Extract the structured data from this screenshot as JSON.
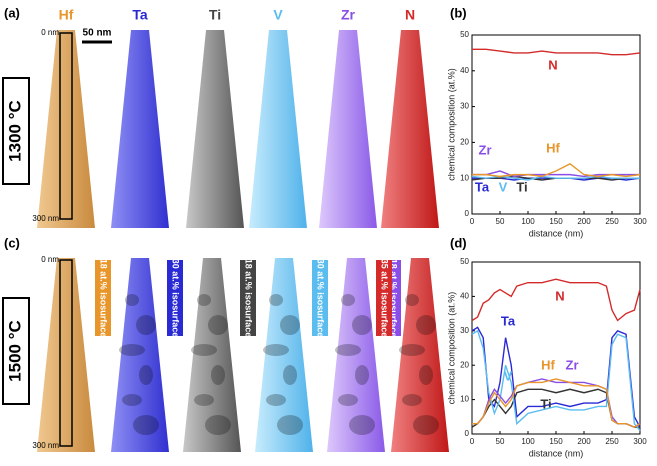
{
  "figure": {
    "panels": [
      "(a)",
      "(b)",
      "(c)",
      "(d)"
    ],
    "temperatures": [
      "1300 °C",
      "1500 °C"
    ],
    "elements": [
      "Hf",
      "Ta",
      "Ti",
      "V",
      "Zr",
      "N"
    ],
    "depth_top": [
      "0 nm",
      "0 nm"
    ],
    "depth_bottom": [
      "300 nm",
      "300 nm"
    ],
    "scale_bar": "50 nm",
    "isosurfaces": [
      "18 at.% isosurface",
      "30 at.% isosurface",
      "18 at.% isosurface",
      "30 at.% isosurface",
      "18 at.% isosurface",
      "35 at.% isosurface"
    ]
  },
  "chart_data": [
    {
      "type": "line",
      "x_label": "distance (nm)",
      "y_label": "chemical composition (at.%)",
      "x": [
        0,
        25,
        50,
        75,
        100,
        125,
        150,
        175,
        200,
        225,
        250,
        275,
        300
      ],
      "xlim": [
        0,
        300
      ],
      "ylim": [
        0,
        50
      ],
      "xticks": [
        0,
        50,
        100,
        150,
        200,
        250,
        300
      ],
      "yticks": [
        0,
        10,
        20,
        30,
        40,
        50
      ],
      "series": [
        {
          "name": "N",
          "color": "#d42a2a",
          "values": [
            46,
            46,
            45.5,
            45,
            45,
            45.5,
            45,
            45,
            45,
            45,
            44.5,
            44.5,
            45
          ]
        },
        {
          "name": "Ta",
          "color": "#2a2ad4",
          "values": [
            10,
            10,
            10,
            9.5,
            10,
            10,
            10,
            10,
            9.5,
            10,
            10,
            9.5,
            10
          ]
        },
        {
          "name": "Ti",
          "color": "#333333",
          "values": [
            9.5,
            10,
            10,
            10.5,
            10,
            9.5,
            10,
            10,
            10,
            10,
            9.5,
            10,
            10
          ]
        },
        {
          "name": "V",
          "color": "#5bbcf0",
          "values": [
            10.5,
            10,
            10.5,
            10,
            9.5,
            10.5,
            10,
            10,
            10,
            10.5,
            10,
            10,
            10
          ]
        },
        {
          "name": "Zr",
          "color": "#8a4ee6",
          "values": [
            11,
            11,
            12,
            10.5,
            11,
            11,
            11,
            11,
            10.5,
            11,
            11,
            11,
            11
          ]
        },
        {
          "name": "Hf",
          "color": "#e8962a",
          "values": [
            11,
            11,
            10.5,
            11,
            11,
            10.5,
            12,
            14,
            11,
            10.5,
            11,
            10.5,
            11
          ]
        }
      ]
    },
    {
      "type": "line",
      "x_label": "distance (nm)",
      "y_label": "chemical composition (at.%)",
      "x": [
        0,
        10,
        20,
        30,
        40,
        50,
        60,
        70,
        80,
        100,
        125,
        150,
        175,
        200,
        225,
        240,
        250,
        260,
        275,
        290,
        300
      ],
      "xlim": [
        0,
        300
      ],
      "ylim": [
        0,
        50
      ],
      "xticks": [
        0,
        50,
        100,
        150,
        200,
        250,
        300
      ],
      "yticks": [
        0,
        10,
        20,
        30,
        40,
        50
      ],
      "series": [
        {
          "name": "N",
          "color": "#d42a2a",
          "values": [
            33,
            34,
            38,
            39,
            41,
            42,
            41,
            40,
            43,
            44,
            44,
            45,
            44,
            44,
            44,
            43,
            36,
            33,
            35,
            36,
            42
          ]
        },
        {
          "name": "Ta",
          "color": "#2a2ad4",
          "values": [
            30,
            31,
            28,
            10,
            8,
            15,
            28,
            20,
            5,
            8,
            8,
            9,
            8,
            9,
            9,
            10,
            28,
            30,
            29,
            5,
            2
          ]
        },
        {
          "name": "Ti",
          "color": "#333333",
          "values": [
            2,
            3,
            5,
            8,
            10,
            8,
            6,
            8,
            12,
            13,
            13,
            12,
            13,
            12,
            13,
            12,
            4,
            3,
            3,
            2,
            2
          ]
        },
        {
          "name": "V",
          "color": "#5bbcf0",
          "values": [
            29,
            30,
            25,
            12,
            6,
            10,
            20,
            15,
            3,
            6,
            7,
            8,
            7,
            7,
            8,
            8,
            26,
            29,
            28,
            3,
            1
          ]
        },
        {
          "name": "Zr",
          "color": "#8a4ee6",
          "values": [
            3,
            3,
            5,
            10,
            13,
            11,
            9,
            11,
            14,
            15,
            16,
            15,
            15,
            15,
            14,
            13,
            5,
            3,
            3,
            2,
            3
          ]
        },
        {
          "name": "Hf",
          "color": "#e8962a",
          "values": [
            3,
            3,
            5,
            9,
            12,
            10,
            8,
            10,
            14,
            15,
            15,
            16,
            15,
            14,
            14,
            13,
            4,
            3,
            3,
            2,
            3
          ]
        }
      ]
    }
  ]
}
